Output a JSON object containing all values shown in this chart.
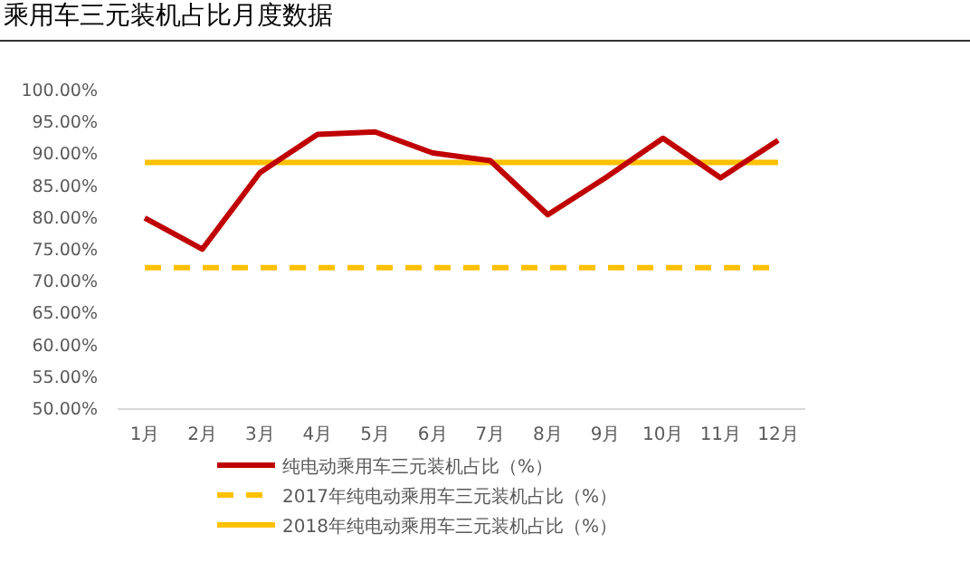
{
  "chart_data": {
    "type": "line",
    "title": "乘用车三元装机占比月度数据",
    "categories": [
      "1月",
      "2月",
      "3月",
      "4月",
      "5月",
      "6月",
      "7月",
      "8月",
      "9月",
      "10月",
      "11月",
      "12月"
    ],
    "series": [
      {
        "name": "纯电动乘用车三元装机占比（%）",
        "color": "#c00000",
        "line_style": "solid",
        "values": [
          80.0,
          75.1,
          87.1,
          93.1,
          93.5,
          90.2,
          89.0,
          80.5,
          86.3,
          92.5,
          86.3,
          92.2
        ]
      },
      {
        "name": "2017年纯电动乘用车三元装机占比（%）",
        "color": "#ffc000",
        "line_style": "dashed",
        "values": [
          72.2,
          72.2,
          72.2,
          72.2,
          72.2,
          72.2,
          72.2,
          72.2,
          72.2,
          72.2,
          72.2,
          72.2
        ]
      },
      {
        "name": "2018年纯电动乘用车三元装机占比（%）",
        "color": "#ffc000",
        "line_style": "solid",
        "values": [
          88.7,
          88.7,
          88.7,
          88.7,
          88.7,
          88.7,
          88.7,
          88.7,
          88.7,
          88.7,
          88.7,
          88.7
        ]
      }
    ],
    "ylim": [
      50,
      100
    ],
    "yticks": [
      {
        "value": 50,
        "label": "50.00%"
      },
      {
        "value": 55,
        "label": "55.00%"
      },
      {
        "value": 60,
        "label": "60.00%"
      },
      {
        "value": 65,
        "label": "65.00%"
      },
      {
        "value": 70,
        "label": "70.00%"
      },
      {
        "value": 75,
        "label": "75.00%"
      },
      {
        "value": 80,
        "label": "80.00%"
      },
      {
        "value": 85,
        "label": "85.00%"
      },
      {
        "value": 90,
        "label": "90.00%"
      },
      {
        "value": 95,
        "label": "95.00%"
      },
      {
        "value": 100,
        "label": "100.00%"
      }
    ],
    "grid": false,
    "legend": "bottom",
    "marker": "none"
  }
}
